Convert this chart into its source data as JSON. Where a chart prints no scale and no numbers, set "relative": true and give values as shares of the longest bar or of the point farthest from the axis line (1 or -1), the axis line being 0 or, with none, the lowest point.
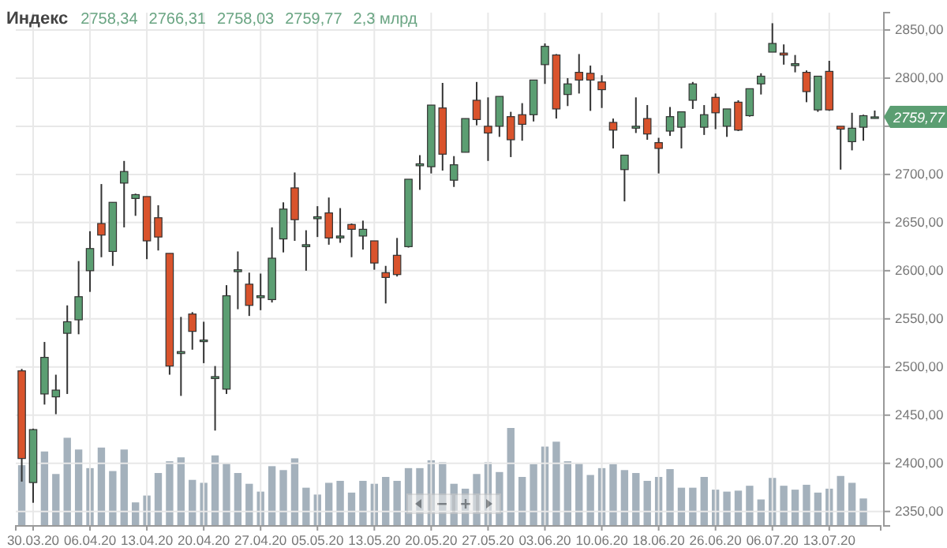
{
  "chart_data": [
    {
      "type": "candlestick",
      "title": "Индекс",
      "annotations": [
        "2758,34",
        "2766,31",
        "2758,03",
        "2759,77",
        "2,3 млрд",
        {
          "text": "2759,77",
          "y": 2759.77
        }
      ],
      "categories": [
        null,
        "30.03.20",
        null,
        null,
        null,
        null,
        "06.04.20",
        null,
        null,
        null,
        null,
        "13.04.20",
        null,
        null,
        null,
        null,
        "20.04.20",
        null,
        null,
        null,
        null,
        "27.04.20",
        null,
        null,
        null,
        null,
        "05.05.20",
        null,
        null,
        null,
        null,
        "13.05.20",
        null,
        null,
        null,
        null,
        "20.05.20",
        null,
        null,
        null,
        null,
        "27.05.20",
        null,
        null,
        null,
        null,
        "03.06.20",
        null,
        null,
        null,
        null,
        "10.06.20",
        null,
        null,
        null,
        null,
        "18.06.20",
        null,
        null,
        null,
        null,
        "26.06.20",
        null,
        null,
        null,
        null,
        "06.07.20",
        null,
        null,
        null,
        null,
        "13.07.20",
        null,
        null,
        null,
        null
      ],
      "ohlc": [
        [
          2496,
          2498,
          2381,
          2405
        ],
        [
          2380,
          2436,
          2359,
          2435
        ],
        [
          2472,
          2526,
          2461,
          2510
        ],
        [
          2469,
          2492,
          2451,
          2476
        ],
        [
          2535,
          2564,
          2472,
          2547
        ],
        [
          2549,
          2610,
          2534,
          2573
        ],
        [
          2600,
          2641,
          2578,
          2623
        ],
        [
          2649,
          2690,
          2614,
          2637
        ],
        [
          2620,
          2671,
          2605,
          2671
        ],
        [
          2691,
          2714,
          2645,
          2703
        ],
        [
          2675,
          2680,
          2657,
          2679
        ],
        [
          2677,
          2677,
          2612,
          2631
        ],
        [
          2655,
          2668,
          2621,
          2635
        ],
        [
          2618,
          2618,
          2492,
          2501
        ],
        [
          2514,
          2552,
          2470,
          2516
        ],
        [
          2555,
          2557,
          2518,
          2537
        ],
        [
          2527,
          2547,
          2504,
          2528
        ],
        [
          2488,
          2501,
          2434,
          2490
        ],
        [
          2477,
          2585,
          2472,
          2574
        ],
        [
          2599,
          2620,
          2560,
          2601
        ],
        [
          2586,
          2598,
          2553,
          2564
        ],
        [
          2572,
          2597,
          2559,
          2574
        ],
        [
          2570,
          2645,
          2567,
          2613
        ],
        [
          2633,
          2671,
          2619,
          2664
        ],
        [
          2686,
          2702,
          2631,
          2653
        ],
        [
          2625,
          2642,
          2600,
          2627
        ],
        [
          2654,
          2667,
          2635,
          2656
        ],
        [
          2660,
          2676,
          2627,
          2634
        ],
        [
          2634,
          2665,
          2629,
          2636
        ],
        [
          2648,
          2649,
          2614,
          2643
        ],
        [
          2636,
          2652,
          2622,
          2643
        ],
        [
          2631,
          2631,
          2601,
          2608
        ],
        [
          2598,
          2605,
          2566,
          2593
        ],
        [
          2616,
          2634,
          2594,
          2596
        ],
        [
          2625,
          2695,
          2624,
          2695
        ],
        [
          2709,
          2720,
          2684,
          2711
        ],
        [
          2708,
          2772,
          2701,
          2772
        ],
        [
          2769,
          2795,
          2704,
          2721
        ],
        [
          2694,
          2719,
          2687,
          2710
        ],
        [
          2723,
          2758,
          2723,
          2758
        ],
        [
          2777,
          2796,
          2751,
          2757
        ],
        [
          2750,
          2780,
          2714,
          2743
        ],
        [
          2750,
          2781,
          2739,
          2781
        ],
        [
          2760,
          2765,
          2718,
          2736
        ],
        [
          2762,
          2774,
          2735,
          2752
        ],
        [
          2762,
          2798,
          2755,
          2798
        ],
        [
          2814,
          2836,
          2794,
          2833
        ],
        [
          2824,
          2825,
          2758,
          2768
        ],
        [
          2783,
          2800,
          2771,
          2794
        ],
        [
          2806,
          2825,
          2784,
          2798
        ],
        [
          2805,
          2813,
          2766,
          2798
        ],
        [
          2796,
          2803,
          2769,
          2788
        ],
        [
          2754,
          2758,
          2727,
          2746
        ],
        [
          2705,
          2720,
          2672,
          2720
        ],
        [
          2748,
          2780,
          2743,
          2750
        ],
        [
          2758,
          2772,
          2736,
          2742
        ],
        [
          2733,
          2738,
          2701,
          2727
        ],
        [
          2745,
          2770,
          2740,
          2760
        ],
        [
          2749,
          2765,
          2727,
          2765
        ],
        [
          2777,
          2796,
          2768,
          2794
        ],
        [
          2749,
          2772,
          2741,
          2762
        ],
        [
          2780,
          2784,
          2747,
          2764
        ],
        [
          2750,
          2768,
          2739,
          2768
        ],
        [
          2775,
          2777,
          2745,
          2746
        ],
        [
          2761,
          2789,
          2760,
          2789
        ],
        [
          2794,
          2805,
          2783,
          2802
        ],
        [
          2827,
          2857,
          2827,
          2836
        ],
        [
          2826,
          2835,
          2814,
          2824
        ],
        [
          2813,
          2824,
          2806,
          2815
        ],
        [
          2806,
          2808,
          2775,
          2786
        ],
        [
          2767,
          2802,
          2765,
          2802
        ],
        [
          2807,
          2818,
          2766,
          2767
        ],
        [
          2750,
          2750,
          2705,
          2747
        ],
        [
          2734,
          2764,
          2725,
          2748
        ],
        [
          2749,
          2762,
          2735,
          2761
        ],
        [
          2758.34,
          2766.31,
          2758.03,
          2759.77
        ]
      ],
      "colors": [
        "#d9532c",
        "#5b9e72",
        "#5b9e72",
        "#5b9e72",
        "#5b9e72",
        "#5b9e72",
        "#5b9e72",
        "#d9532c",
        "#5b9e72",
        "#5b9e72",
        "#5b9e72",
        "#d9532c",
        "#d9532c",
        "#d9532c",
        "#5b9e72",
        "#d9532c",
        "#5b9e72",
        "#5b9e72",
        "#5b9e72",
        "#5b9e72",
        "#d9532c",
        "#5b9e72",
        "#5b9e72",
        "#5b9e72",
        "#d9532c",
        "#5b9e72",
        "#5b9e72",
        "#d9532c",
        "#5b9e72",
        "#d9532c",
        "#5b9e72",
        "#d9532c",
        "#d9532c",
        "#d9532c",
        "#5b9e72",
        "#5b9e72",
        "#5b9e72",
        "#d9532c",
        "#5b9e72",
        "#5b9e72",
        "#d9532c",
        "#d9532c",
        "#5b9e72",
        "#d9532c",
        "#d9532c",
        "#5b9e72",
        "#5b9e72",
        "#d9532c",
        "#5b9e72",
        "#d9532c",
        "#d9532c",
        "#d9532c",
        "#d9532c",
        "#5b9e72",
        "#5b9e72",
        "#d9532c",
        "#d9532c",
        "#5b9e72",
        "#5b9e72",
        "#5b9e72",
        "#5b9e72",
        "#d9532c",
        "#5b9e72",
        "#d9532c",
        "#5b9e72",
        "#5b9e72",
        "#5b9e72",
        "#d9532c",
        "#5b9e72",
        "#d9532c",
        "#5b9e72",
        "#d9532c",
        "#d9532c",
        "#5b9e72",
        "#5b9e72",
        "#5b9e72"
      ],
      "ylim": [
        2335,
        2868
      ],
      "yticks": [
        {
          "value": 2350,
          "label": "2350,00"
        },
        {
          "value": 2400,
          "label": "2400,00"
        },
        {
          "value": 2450,
          "label": "2450,00"
        },
        {
          "value": 2500,
          "label": "2500,00"
        },
        {
          "value": 2550,
          "label": "2550,00"
        },
        {
          "value": 2600,
          "label": "2600,00"
        },
        {
          "value": 2650,
          "label": "2650,00"
        },
        {
          "value": 2700,
          "label": "2700,00"
        },
        {
          "value": 2750,
          "label": null
        },
        {
          "value": 2800,
          "label": "2800,00"
        },
        {
          "value": 2850,
          "label": "2850,00"
        }
      ],
      "grid": true
    },
    {
      "type": "bar",
      "relative": true,
      "color": "#a4b1bc",
      "categories": [
        null,
        null,
        null,
        null,
        null,
        null,
        null,
        null,
        null,
        null,
        null,
        null,
        null,
        null,
        null,
        null,
        null,
        null,
        null,
        null,
        null,
        null,
        null,
        null,
        null,
        null,
        null,
        null,
        null,
        null,
        null,
        null,
        null,
        null,
        null,
        null,
        null,
        null,
        null,
        null,
        null,
        null,
        null,
        null,
        null,
        null,
        null,
        null,
        null,
        null,
        null,
        null,
        null,
        null,
        null,
        null,
        null,
        null,
        null,
        null,
        null,
        null,
        null,
        null,
        null,
        null,
        null,
        null,
        null,
        null,
        null,
        null,
        null,
        null,
        null,
        null
      ],
      "values": [
        0.62,
        null,
        0.76,
        0.53,
        0.9,
        0.78,
        0.59,
        0.8,
        0.56,
        0.78,
        0.24,
        0.31,
        0.54,
        0.66,
        0.7,
        0.47,
        0.44,
        0.72,
        0.64,
        0.54,
        0.43,
        0.35,
        0.61,
        0.57,
        0.69,
        0.39,
        0.32,
        0.44,
        0.46,
        0.34,
        0.46,
        0.43,
        0.5,
        0.46,
        0.59,
        0.59,
        0.67,
        0.65,
        0.43,
        0.38,
        0.53,
        0.65,
        0.55,
        1,
        0.5,
        0.63,
        0.81,
        0.86,
        0.66,
        0.64,
        0.52,
        0.59,
        0.63,
        0.57,
        0.54,
        0.46,
        0.5,
        0.58,
        0.39,
        0.39,
        0.5,
        0.37,
        0.35,
        0.36,
        0.41,
        0.27,
        0.49,
        0.41,
        0.37,
        0.42,
        0.34,
        0.38,
        0.51,
        0.44,
        0.28,
        null
      ]
    }
  ]
}
